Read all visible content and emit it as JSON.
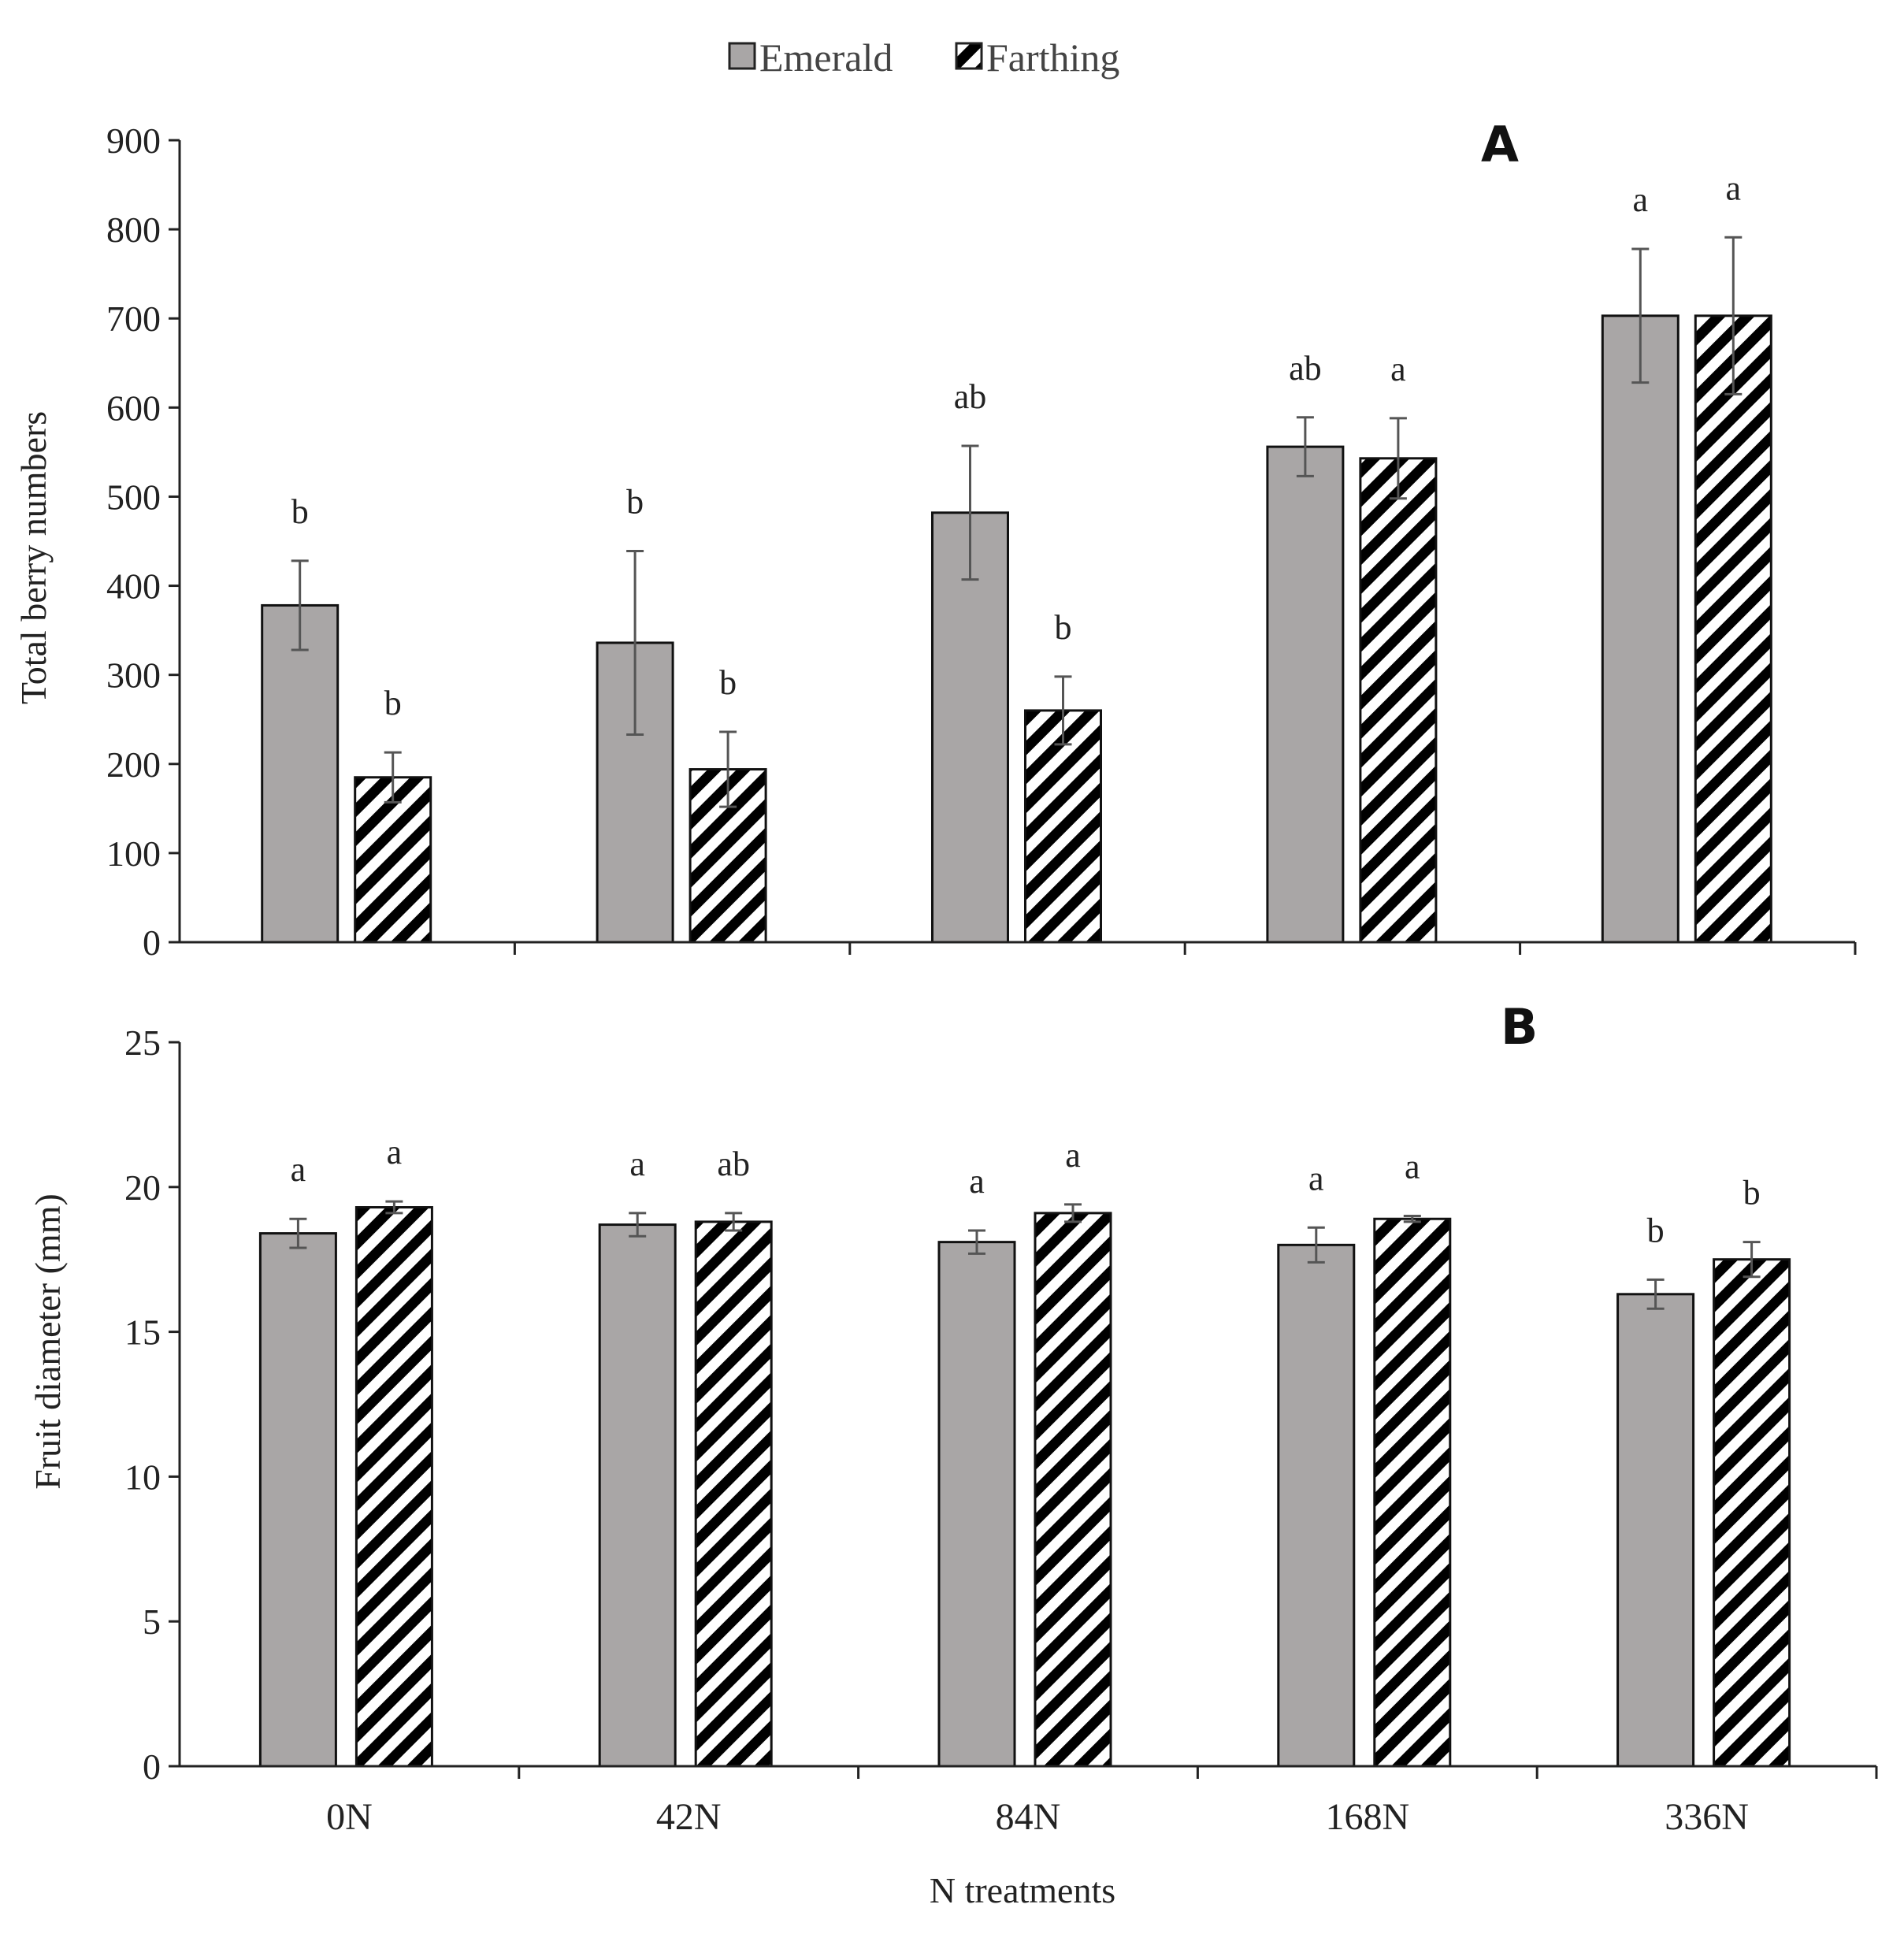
{
  "legend": [
    {
      "name": "Emerald",
      "fill": "#a9a6a6"
    },
    {
      "name": "Farthing",
      "fill": "hatch"
    }
  ],
  "colors": {
    "emerald": "#a9a6a6",
    "axis": "#222222",
    "error_bar": "#555555"
  },
  "xlabel": "N treatments",
  "categories": [
    "0N",
    "42N",
    "84N",
    "168N",
    "336N"
  ],
  "chart_data": [
    {
      "type": "bar",
      "panel": "A",
      "ylabel": "Total berry numbers",
      "ylim": [
        0,
        900
      ],
      "yticks": [
        0,
        100,
        200,
        300,
        400,
        500,
        600,
        700,
        800,
        900
      ],
      "categories": [
        "0N",
        "42N",
        "84N",
        "168N",
        "336N"
      ],
      "series": [
        {
          "name": "Emerald",
          "values": [
            378,
            336,
            482,
            556,
            703
          ],
          "errors": [
            50,
            103,
            75,
            33,
            75
          ],
          "letters": [
            "b",
            "b",
            "ab",
            "ab",
            "a"
          ]
        },
        {
          "name": "Farthing",
          "values": [
            185,
            194,
            260,
            543,
            703
          ],
          "errors": [
            28,
            42,
            38,
            45,
            88
          ],
          "letters": [
            "b",
            "b",
            "b",
            "a",
            "a"
          ]
        }
      ]
    },
    {
      "type": "bar",
      "panel": "B",
      "ylabel": "Fruit  diameter  (mm)",
      "ylim": [
        0,
        25
      ],
      "yticks": [
        0,
        5,
        10,
        15,
        20,
        25
      ],
      "categories": [
        "0N",
        "42N",
        "84N",
        "168N",
        "336N"
      ],
      "series": [
        {
          "name": "Emerald",
          "values": [
            18.4,
            18.7,
            18.1,
            18.0,
            16.3
          ],
          "errors": [
            0.5,
            0.4,
            0.4,
            0.6,
            0.5
          ],
          "letters": [
            "a",
            "a",
            "a",
            "a",
            "b"
          ]
        },
        {
          "name": "Farthing",
          "values": [
            19.3,
            18.8,
            19.1,
            18.9,
            17.5
          ],
          "errors": [
            0.2,
            0.3,
            0.3,
            0.1,
            0.6
          ],
          "letters": [
            "a",
            "ab",
            "a",
            "a",
            "b"
          ]
        }
      ]
    }
  ]
}
